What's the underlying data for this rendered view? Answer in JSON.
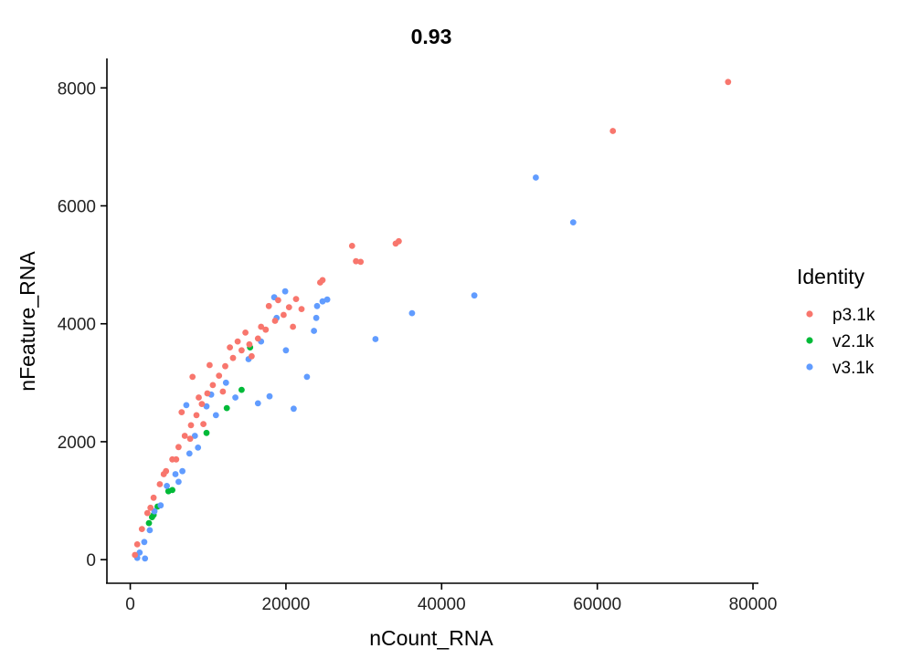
{
  "chart_data": {
    "type": "scatter",
    "title": "0.93",
    "xlabel": "nCount_RNA",
    "ylabel": "nFeature_RNA",
    "xlim": [
      -3000,
      80700
    ],
    "ylim": [
      -400,
      8500
    ],
    "xticks": [
      {
        "value": 0,
        "label": "0"
      },
      {
        "value": 20000,
        "label": "20000"
      },
      {
        "value": 40000,
        "label": "40000"
      },
      {
        "value": 60000,
        "label": "60000"
      },
      {
        "value": 80000,
        "label": "80000"
      }
    ],
    "yticks": [
      {
        "value": 0,
        "label": "0"
      },
      {
        "value": 2000,
        "label": "2000"
      },
      {
        "value": 4000,
        "label": "4000"
      },
      {
        "value": 6000,
        "label": "6000"
      },
      {
        "value": 8000,
        "label": "8000"
      }
    ],
    "grid": false,
    "legend": {
      "title": "Identity",
      "position": "right"
    },
    "series": [
      {
        "name": "p3.1k",
        "color": "#F8766D",
        "points": [
          [
            76800,
            8100
          ],
          [
            62000,
            7270
          ],
          [
            34500,
            5400
          ],
          [
            34100,
            5360
          ],
          [
            28500,
            5320
          ],
          [
            29000,
            5060
          ],
          [
            29600,
            5050
          ],
          [
            24700,
            4740
          ],
          [
            24400,
            4700
          ],
          [
            21300,
            4420
          ],
          [
            20400,
            4280
          ],
          [
            19700,
            4150
          ],
          [
            18600,
            4050
          ],
          [
            17400,
            3900
          ],
          [
            16400,
            3750
          ],
          [
            15300,
            3650
          ],
          [
            14300,
            3550
          ],
          [
            13200,
            3420
          ],
          [
            12200,
            3280
          ],
          [
            11400,
            3120
          ],
          [
            10600,
            2960
          ],
          [
            9900,
            2820
          ],
          [
            9200,
            2640
          ],
          [
            8500,
            2450
          ],
          [
            7800,
            2280
          ],
          [
            7000,
            2100
          ],
          [
            6200,
            1910
          ],
          [
            5400,
            1700
          ],
          [
            4600,
            1500
          ],
          [
            3800,
            1280
          ],
          [
            3000,
            1050
          ],
          [
            2200,
            790
          ],
          [
            1500,
            520
          ],
          [
            900,
            260
          ],
          [
            600,
            80
          ],
          [
            12800,
            3600
          ],
          [
            8000,
            3100
          ],
          [
            10200,
            3300
          ],
          [
            6600,
            2500
          ],
          [
            17800,
            4300
          ],
          [
            20900,
            3950
          ],
          [
            15600,
            3450
          ],
          [
            11900,
            2850
          ],
          [
            9400,
            2300
          ],
          [
            7700,
            2050
          ],
          [
            5900,
            1700
          ],
          [
            13800,
            3700
          ],
          [
            4300,
            1450
          ],
          [
            2600,
            880
          ],
          [
            19000,
            4400
          ],
          [
            22000,
            4250
          ],
          [
            8800,
            2750
          ],
          [
            16800,
            3950
          ],
          [
            14800,
            3850
          ]
        ]
      },
      {
        "name": "v2.1k",
        "color": "#00BA38",
        "points": [
          [
            14300,
            2880
          ],
          [
            12400,
            2570
          ],
          [
            9800,
            2150
          ],
          [
            5400,
            1180
          ],
          [
            4900,
            1160
          ],
          [
            3000,
            760
          ],
          [
            2400,
            620
          ],
          [
            3500,
            900
          ],
          [
            2800,
            720
          ],
          [
            15400,
            3600
          ]
        ]
      },
      {
        "name": "v3.1k",
        "color": "#619CFF",
        "points": [
          [
            52100,
            6480
          ],
          [
            56900,
            5720
          ],
          [
            44200,
            4480
          ],
          [
            36200,
            4180
          ],
          [
            31500,
            3740
          ],
          [
            25300,
            4410
          ],
          [
            24700,
            4380
          ],
          [
            24000,
            4300
          ],
          [
            23900,
            4100
          ],
          [
            23600,
            3880
          ],
          [
            22700,
            3100
          ],
          [
            21000,
            2560
          ],
          [
            17900,
            2770
          ],
          [
            16400,
            2650
          ],
          [
            19900,
            4550
          ],
          [
            18500,
            4450
          ],
          [
            18800,
            4100
          ],
          [
            20000,
            3550
          ],
          [
            16800,
            3700
          ],
          [
            15200,
            3400
          ],
          [
            13500,
            2750
          ],
          [
            11000,
            2450
          ],
          [
            9800,
            2600
          ],
          [
            8700,
            1900
          ],
          [
            7600,
            1800
          ],
          [
            6700,
            1500
          ],
          [
            5800,
            1450
          ],
          [
            4700,
            1250
          ],
          [
            3900,
            920
          ],
          [
            3100,
            820
          ],
          [
            2500,
            500
          ],
          [
            1800,
            300
          ],
          [
            1200,
            120
          ],
          [
            1900,
            20
          ],
          [
            900,
            30
          ],
          [
            7200,
            2620
          ],
          [
            8300,
            2100
          ],
          [
            10400,
            2800
          ],
          [
            12300,
            3000
          ],
          [
            6200,
            1320
          ]
        ]
      }
    ]
  }
}
